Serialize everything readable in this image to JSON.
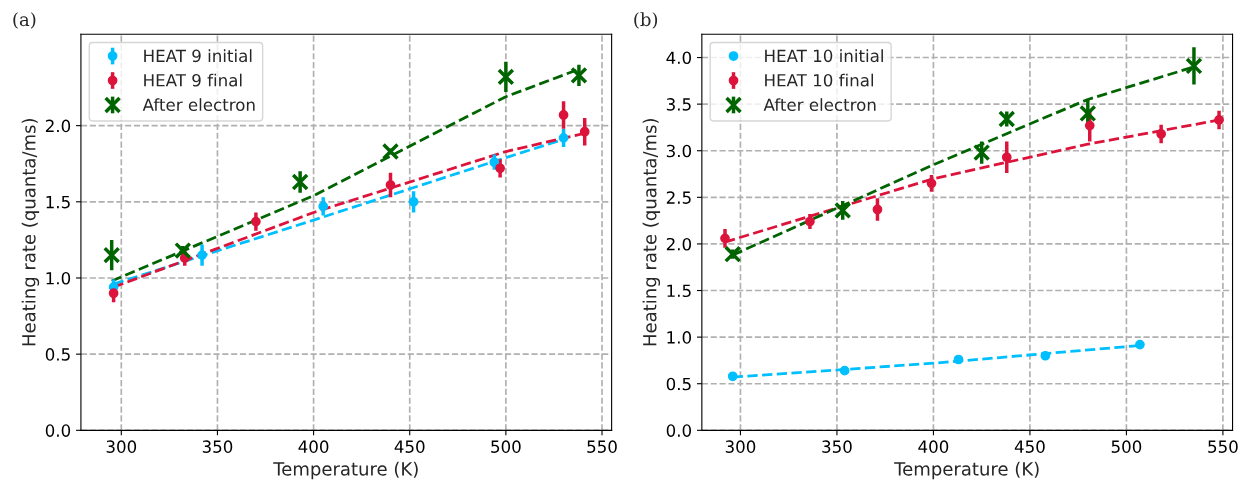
{
  "chart_data": [
    {
      "type": "scatter",
      "title": "(a)",
      "xlabel": "Temperature (K)",
      "ylabel": "Heating rate (quanta/ms)",
      "xlim": [
        279,
        555
      ],
      "ylim": [
        0,
        2.6
      ],
      "xticks": [
        300,
        350,
        400,
        450,
        500,
        550
      ],
      "yticks": [
        {
          "value": 0,
          "label": "0.0"
        },
        0.5,
        {
          "value": 1,
          "label": "1.0"
        },
        1.5,
        {
          "value": 2,
          "label": "2.0"
        }
      ],
      "grid": true,
      "legend": "top left",
      "series": [
        {
          "name": "HEAT 9 initial",
          "color": "#00bfff",
          "marker": "circle",
          "x": [
            296,
            342,
            405,
            452,
            494,
            530
          ],
          "values": [
            0.94,
            1.15,
            1.47,
            1.5,
            1.76,
            1.92
          ],
          "errors": [
            0.05,
            0.07,
            0.06,
            0.07,
            0.05,
            0.06
          ]
        },
        {
          "name": "HEAT 9 final",
          "color": "#dc143c",
          "marker": "circle",
          "x": [
            296,
            333,
            370,
            440,
            497,
            530,
            541
          ],
          "values": [
            0.9,
            1.13,
            1.37,
            1.61,
            1.72,
            2.07,
            1.96
          ],
          "errors": [
            0.06,
            0.05,
            0.06,
            0.08,
            0.06,
            0.09,
            0.09
          ]
        },
        {
          "name": "After electron",
          "color": "#006400",
          "marker": "cross",
          "x": [
            295,
            332,
            393,
            440,
            500,
            538
          ],
          "values": [
            1.15,
            1.18,
            1.63,
            1.83,
            2.32,
            2.33
          ],
          "errors": [
            0.1,
            0.03,
            0.07,
            0.02,
            0.1,
            0.07
          ]
        },
        {
          "type": "line",
          "color": "#00bfff",
          "marker": "none",
          "line_style": "dashed",
          "x": [
            296,
            400,
            500,
            530
          ],
          "values": [
            0.96,
            1.38,
            1.79,
            1.91
          ]
        },
        {
          "type": "line",
          "color": "#dc143c",
          "marker": "none",
          "line_style": "dashed",
          "x": [
            296,
            400,
            500,
            541
          ],
          "values": [
            0.94,
            1.43,
            1.83,
            1.95
          ]
        },
        {
          "type": "line",
          "color": "#006400",
          "marker": "none",
          "line_style": "dashed",
          "x": [
            295,
            400,
            500,
            538
          ],
          "values": [
            0.98,
            1.54,
            2.19,
            2.37
          ]
        }
      ]
    },
    {
      "type": "scatter",
      "title": "(b)",
      "xlabel": "Temperature (K)",
      "ylabel": "Heating rate (quanta/ms)",
      "xlim": [
        280,
        555
      ],
      "ylim": [
        0,
        4.25
      ],
      "xticks": [
        300,
        350,
        400,
        450,
        500,
        550
      ],
      "yticks": [
        {
          "value": 0,
          "label": "0.0"
        },
        0.5,
        {
          "value": 1,
          "label": "1.0"
        },
        1.5,
        {
          "value": 2,
          "label": "2.0"
        },
        2.5,
        {
          "value": 3,
          "label": "3.0"
        },
        3.5,
        {
          "value": 4,
          "label": "4.0"
        }
      ],
      "grid": true,
      "legend": "top left",
      "series": [
        {
          "name": "HEAT 10 initial",
          "color": "#00bfff",
          "marker": "circle",
          "x": [
            296,
            354,
            413,
            458,
            507
          ],
          "values": [
            0.58,
            0.64,
            0.76,
            0.8,
            0.92
          ]
        },
        {
          "name": "HEAT 10 final",
          "color": "#dc143c",
          "marker": "circle",
          "x": [
            292,
            336,
            371,
            399,
            438,
            481,
            518,
            548
          ],
          "values": [
            2.06,
            2.24,
            2.37,
            2.65,
            2.93,
            3.27,
            3.18,
            3.33
          ],
          "errors": [
            0.1,
            0.08,
            0.12,
            0.09,
            0.17,
            0.17,
            0.1,
            0.1
          ]
        },
        {
          "name": "After electron",
          "color": "#006400",
          "marker": "cross",
          "x": [
            296,
            353,
            425,
            438,
            480,
            535
          ],
          "values": [
            1.89,
            2.36,
            2.98,
            3.34,
            3.4,
            3.91
          ],
          "errors": [
            0.05,
            0.1,
            0.12,
            0.08,
            0.15,
            0.2
          ]
        },
        {
          "type": "line",
          "color": "#00bfff",
          "marker": "none",
          "line_style": "dashed",
          "x": [
            296,
            400,
            507
          ],
          "values": [
            0.57,
            0.72,
            0.91
          ]
        },
        {
          "type": "line",
          "color": "#dc143c",
          "marker": "none",
          "line_style": "dashed",
          "x": [
            292,
            400,
            480,
            548
          ],
          "values": [
            2.02,
            2.7,
            3.07,
            3.33
          ]
        },
        {
          "type": "line",
          "color": "#006400",
          "marker": "none",
          "line_style": "dashed",
          "x": [
            296,
            400,
            480,
            535
          ],
          "values": [
            1.88,
            2.85,
            3.55,
            3.9
          ]
        }
      ]
    }
  ]
}
